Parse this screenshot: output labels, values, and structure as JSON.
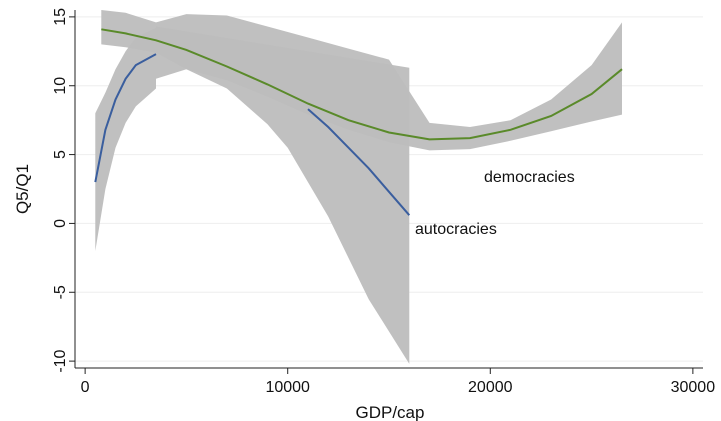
{
  "chart_data": {
    "type": "line",
    "xlabel": "GDP/cap",
    "ylabel": "Q5/Q1",
    "xlim": [
      -500,
      30500
    ],
    "ylim": [
      -10.5,
      15.5
    ],
    "x_ticks": [
      0,
      10000,
      20000,
      30000
    ],
    "y_ticks": [
      -10,
      -5,
      0,
      5,
      10,
      15
    ],
    "x_tick_labels": [
      "0",
      "10000",
      "20000",
      "30000"
    ],
    "y_tick_labels": [
      "-10",
      "-5",
      "0",
      "5",
      "10",
      "15"
    ],
    "grid": "horizontal",
    "series": [
      {
        "name": "democracies",
        "color": "#5a8a2a",
        "x": [
          800,
          2000,
          3500,
          5000,
          7000,
          9000,
          11000,
          13000,
          15000,
          17000,
          19000,
          21000,
          23000,
          25000,
          26500
        ],
        "y": [
          14.1,
          13.8,
          13.3,
          12.6,
          11.4,
          10.1,
          8.7,
          7.5,
          6.6,
          6.1,
          6.2,
          6.8,
          7.8,
          9.4,
          11.2
        ],
        "ci_upper": [
          15.5,
          15.3,
          14.6,
          15.2,
          15.1,
          14.3,
          13.5,
          12.7,
          11.9,
          7.3,
          7.0,
          7.5,
          9.0,
          11.5,
          14.6
        ],
        "ci_lower": [
          13.0,
          12.8,
          12.4,
          11.2,
          10.4,
          9.2,
          7.9,
          6.8,
          5.9,
          5.3,
          5.4,
          6.0,
          6.7,
          7.4,
          7.9
        ],
        "label": "democracies"
      },
      {
        "name": "autocracies",
        "color": "#3a5e9e",
        "x": [
          500,
          1000,
          1500,
          2000,
          2500,
          3500,
          11000,
          12000,
          13000,
          14000,
          15000,
          16000
        ],
        "y": [
          3.0,
          6.8,
          9.0,
          10.5,
          11.5,
          12.3,
          8.3,
          7.0,
          5.5,
          4.0,
          2.3,
          0.6
        ],
        "ci_upper": [
          8.0,
          9.5,
          11.2,
          12.5,
          13.5,
          14.2
        ],
        "ci_lower": [
          -2.0,
          2.5,
          5.5,
          7.3,
          8.5,
          9.8
        ],
        "label": "autocracies"
      }
    ]
  }
}
